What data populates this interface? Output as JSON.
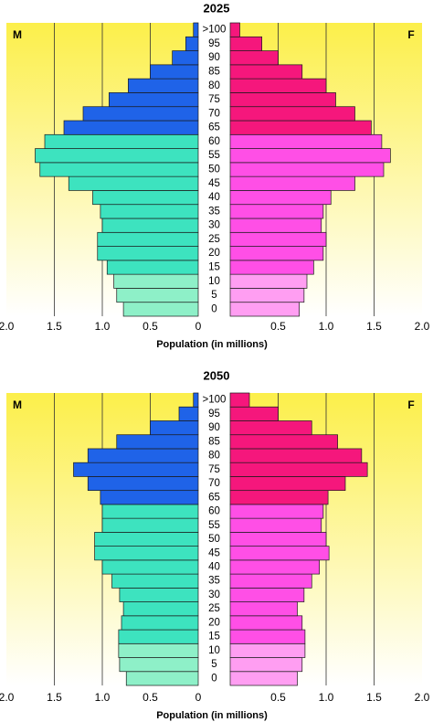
{
  "chart_data": [
    {
      "type": "bar",
      "title": "2025",
      "xlabel": "Population (in millions)",
      "x_ticks": [
        "2.0",
        "1.5",
        "1.0",
        "0.5",
        "0",
        "0.5",
        "1.0",
        "1.5",
        "2.0"
      ],
      "xlim": [
        0,
        2.0
      ],
      "left_label": "M",
      "right_label": "F",
      "grid": true,
      "categories": [
        "0",
        "5",
        "10",
        "15",
        "20",
        "25",
        "30",
        "35",
        "40",
        "45",
        "50",
        "55",
        "60",
        "65",
        "70",
        "75",
        "80",
        "85",
        "90",
        "95",
        ">100"
      ],
      "series": [
        {
          "name": "M",
          "values": [
            0.78,
            0.85,
            0.88,
            0.95,
            1.05,
            1.05,
            1.0,
            1.02,
            1.1,
            1.35,
            1.65,
            1.7,
            1.6,
            1.4,
            1.2,
            0.93,
            0.73,
            0.5,
            0.27,
            0.13,
            0.05
          ]
        },
        {
          "name": "F",
          "values": [
            0.72,
            0.77,
            0.8,
            0.87,
            0.97,
            1.0,
            0.95,
            0.97,
            1.05,
            1.3,
            1.6,
            1.67,
            1.58,
            1.47,
            1.3,
            1.1,
            1.0,
            0.75,
            0.5,
            0.33,
            0.1
          ]
        }
      ]
    },
    {
      "type": "bar",
      "title": "2050",
      "xlabel": "Population (in millions)",
      "x_ticks": [
        "2.0",
        "1.5",
        "1.0",
        "0.5",
        "0",
        "0.5",
        "1.0",
        "1.5",
        "2.0"
      ],
      "xlim": [
        0,
        2.0
      ],
      "left_label": "M",
      "right_label": "F",
      "grid": true,
      "categories": [
        "0",
        "5",
        "10",
        "15",
        "20",
        "25",
        "30",
        "35",
        "40",
        "45",
        "50",
        "55",
        "60",
        "65",
        "70",
        "75",
        "80",
        "85",
        "90",
        "95",
        ">100"
      ],
      "series": [
        {
          "name": "M",
          "values": [
            0.75,
            0.82,
            0.83,
            0.83,
            0.8,
            0.78,
            0.82,
            0.9,
            1.0,
            1.08,
            1.08,
            1.0,
            1.0,
            1.02,
            1.15,
            1.3,
            1.15,
            0.85,
            0.5,
            0.2,
            0.05
          ]
        },
        {
          "name": "F",
          "values": [
            0.7,
            0.75,
            0.78,
            0.78,
            0.75,
            0.7,
            0.77,
            0.85,
            0.93,
            1.03,
            1.0,
            0.95,
            0.97,
            1.02,
            1.2,
            1.43,
            1.37,
            1.12,
            0.85,
            0.5,
            0.2
          ]
        }
      ]
    }
  ],
  "colors": {
    "young_male": "#8ef0c8",
    "working_male": "#3de3bf",
    "elderly_male": "#1f63e8",
    "young_female": "#ff9ef2",
    "working_female": "#ff4fe6",
    "elderly_female": "#f5177c",
    "panel_top": "#fcef4a",
    "panel_bottom": "#ffffff"
  }
}
